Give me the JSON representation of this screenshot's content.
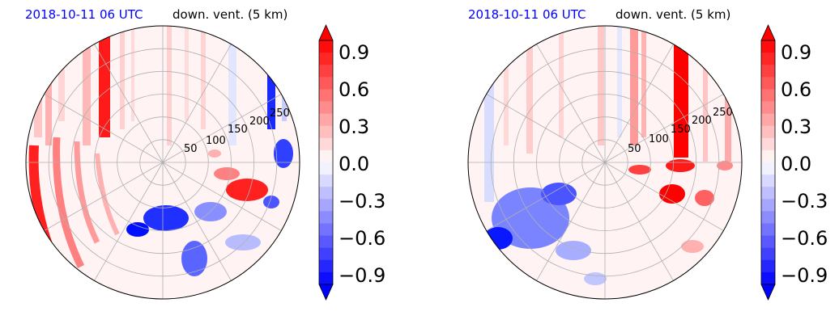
{
  "colors": {
    "time_label": "#0000ff",
    "title_text": "#000000",
    "grid": "#b0b0b0",
    "positive": "#ff0000",
    "negative": "#0000ff",
    "neutral": "#ffffff"
  },
  "chart_data": [
    {
      "type": "heatmap",
      "projection": "polar",
      "time_label": "2018-10-11 06 UTC",
      "title": "down. vent. (5 km)",
      "r_ticks": [
        50,
        100,
        150,
        200,
        250
      ],
      "r_max": 300,
      "grid": true,
      "colorbar": {
        "ticks": [
          0.9,
          0.6,
          0.3,
          0.0,
          -0.3,
          -0.6,
          -0.9
        ],
        "tick_labels": [
          "0.9",
          "0.6",
          "0.3",
          "0.0",
          "−0.3",
          "−0.6",
          "−0.9"
        ],
        "range": [
          -1.0,
          1.0
        ],
        "extend": "both",
        "cmap": "bwr"
      },
      "field_pattern": "vertical streaks (mostly positive) in the northern half; broad positive arcs on the west side; negative patches south of centre; mixed positive/negative patches east"
    },
    {
      "type": "heatmap",
      "projection": "polar",
      "time_label": "2018-10-11 06 UTC",
      "title": "down. vent. (5 km)",
      "r_ticks": [
        50,
        100,
        150,
        200,
        250
      ],
      "r_max": 300,
      "grid": true,
      "colorbar": {
        "ticks": [
          0.9,
          0.6,
          0.3,
          0.0,
          -0.3,
          -0.6,
          -0.9
        ],
        "tick_labels": [
          "0.9",
          "0.6",
          "0.3",
          "0.0",
          "−0.3",
          "−0.6",
          "−0.9"
        ],
        "range": [
          -1.0,
          1.0
        ],
        "extend": "both",
        "cmap": "bwr"
      },
      "field_pattern": "strong positive vertical streaks north-east; negative patches south-west; positive patches east of centre"
    }
  ]
}
